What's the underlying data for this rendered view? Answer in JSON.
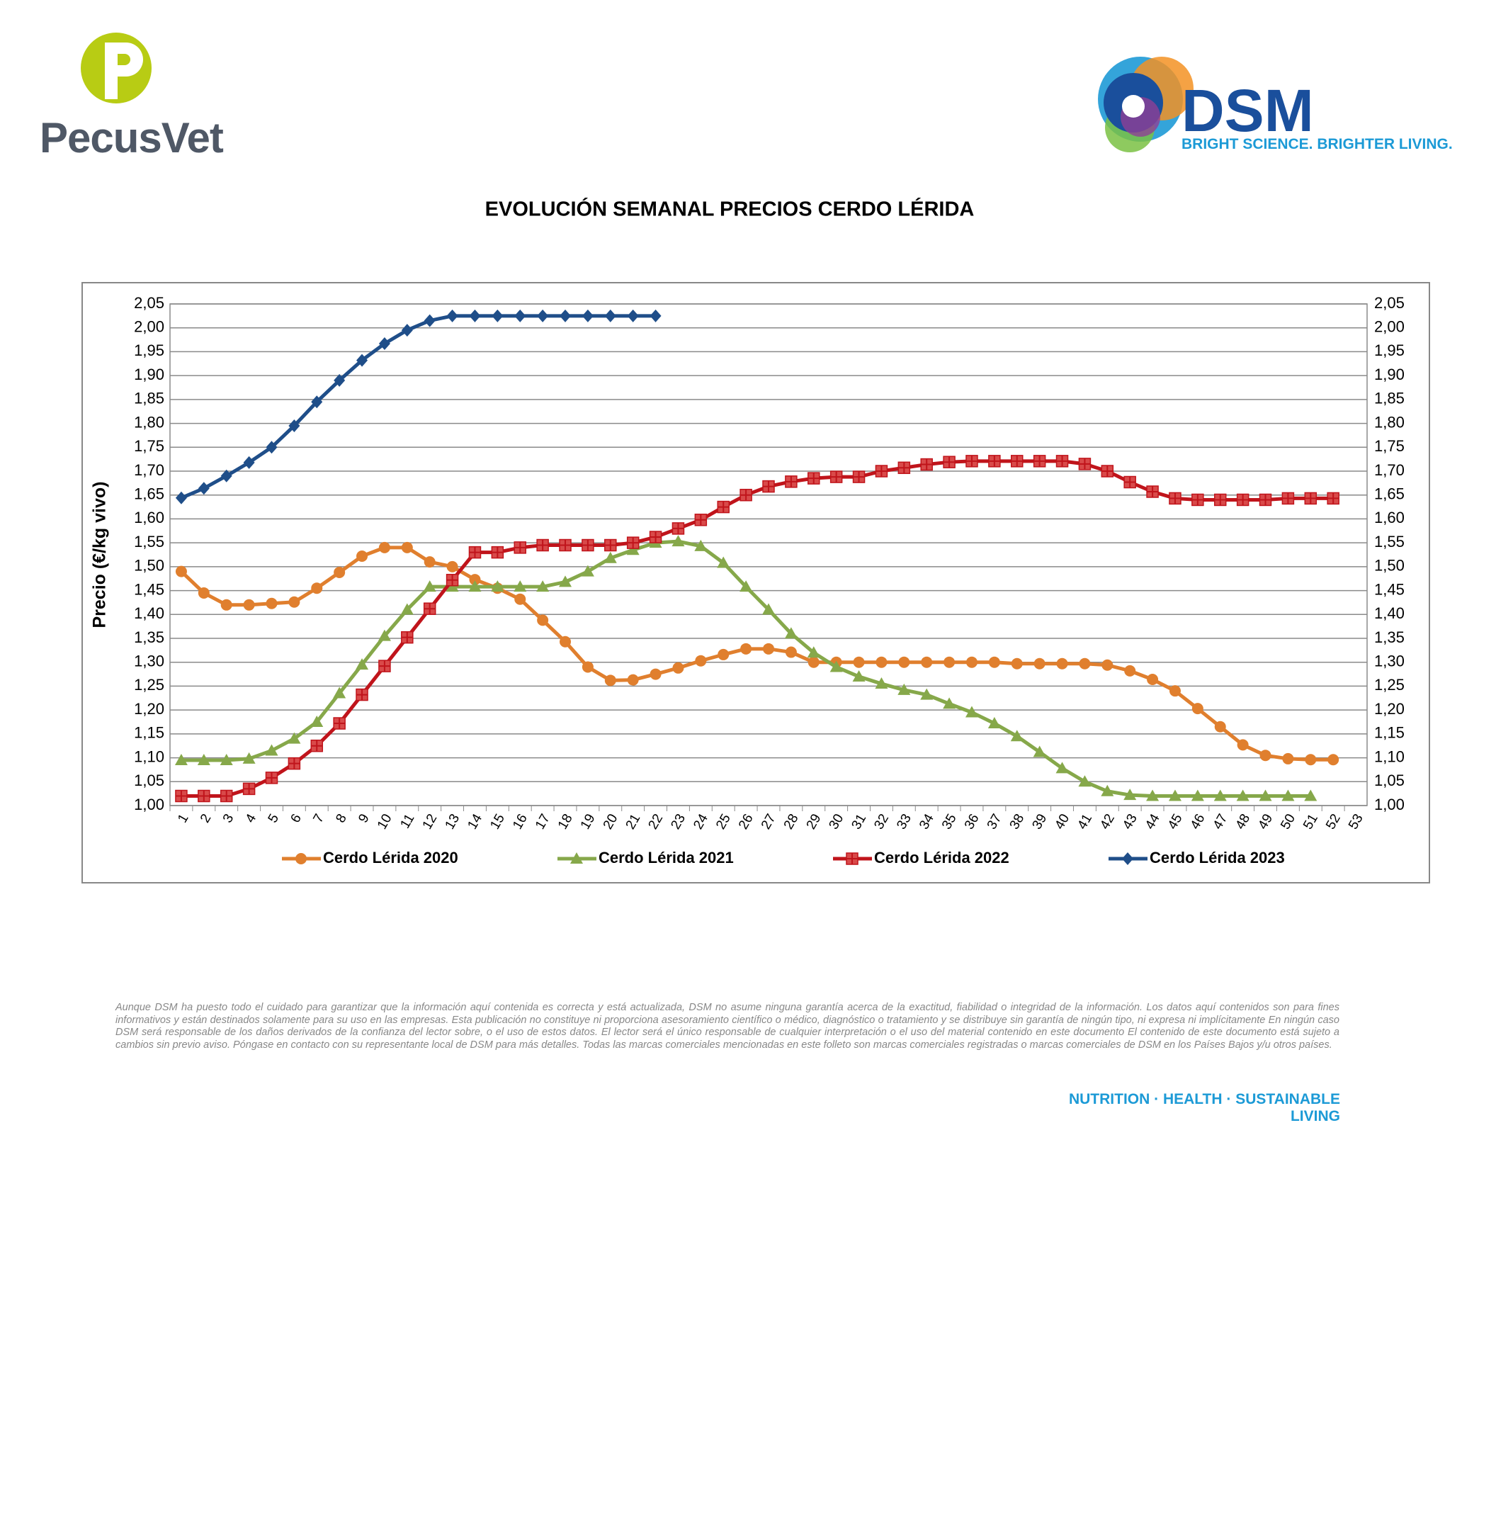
{
  "header": {
    "left_logo": "PecusVet",
    "right_logo": "DSM",
    "right_tagline": "BRIGHT SCIENCE. BRIGHTER LIVING."
  },
  "chart_data": {
    "type": "line",
    "title": "EVOLUCIÓN SEMANAL PRECIOS CERDO LÉRIDA",
    "y_label": "Precio (€/kg vivo)",
    "categories": [
      "1",
      "2",
      "3",
      "4",
      "5",
      "6",
      "7",
      "8",
      "9",
      "10",
      "11",
      "12",
      "13",
      "14",
      "15",
      "16",
      "17",
      "18",
      "19",
      "20",
      "21",
      "22",
      "23",
      "24",
      "25",
      "26",
      "27",
      "28",
      "29",
      "30",
      "31",
      "32",
      "33",
      "34",
      "35",
      "36",
      "37",
      "38",
      "39",
      "40",
      "41",
      "42",
      "43",
      "44",
      "45",
      "46",
      "47",
      "48",
      "49",
      "50",
      "51",
      "52",
      "53"
    ],
    "ylim": [
      1.0,
      2.05
    ],
    "yticks": [
      {
        "value": 1.0,
        "label": "1,00"
      },
      {
        "value": 1.05,
        "label": "1,05"
      },
      {
        "value": 1.1,
        "label": "1,10"
      },
      {
        "value": 1.15,
        "label": "1,15"
      },
      {
        "value": 1.2,
        "label": "1,20"
      },
      {
        "value": 1.25,
        "label": "1,25"
      },
      {
        "value": 1.3,
        "label": "1,30"
      },
      {
        "value": 1.35,
        "label": "1,35"
      },
      {
        "value": 1.4,
        "label": "1,40"
      },
      {
        "value": 1.45,
        "label": "1,45"
      },
      {
        "value": 1.5,
        "label": "1,50"
      },
      {
        "value": 1.55,
        "label": "1,55"
      },
      {
        "value": 1.6,
        "label": "1,60"
      },
      {
        "value": 1.65,
        "label": "1,65"
      },
      {
        "value": 1.7,
        "label": "1,70"
      },
      {
        "value": 1.75,
        "label": "1,75"
      },
      {
        "value": 1.8,
        "label": "1,80"
      },
      {
        "value": 1.85,
        "label": "1,85"
      },
      {
        "value": 1.9,
        "label": "1,90"
      },
      {
        "value": 1.95,
        "label": "1,95"
      },
      {
        "value": 2.0,
        "label": "2,00"
      },
      {
        "value": 2.05,
        "label": "2,05"
      }
    ],
    "grid": true,
    "legend": "bottom",
    "series": [
      {
        "name": "Cerdo Lérida 2020",
        "color": "#e07f2e",
        "marker": "circle",
        "values": [
          1.49,
          1.445,
          1.42,
          1.42,
          1.423,
          1.426,
          1.455,
          1.488,
          1.522,
          1.54,
          1.54,
          1.51,
          1.5,
          1.473,
          1.455,
          1.432,
          1.388,
          1.343,
          1.29,
          1.262,
          1.263,
          1.275,
          1.288,
          1.303,
          1.316,
          1.328,
          1.328,
          1.321,
          1.3,
          1.3,
          1.3,
          1.3,
          1.3,
          1.3,
          1.3,
          1.3,
          1.3,
          1.297,
          1.297,
          1.297,
          1.297,
          1.294,
          1.282,
          1.264,
          1.24,
          1.203,
          1.165,
          1.127,
          1.105,
          1.098,
          1.096,
          1.096,
          null
        ]
      },
      {
        "name": "Cerdo Lérida 2021",
        "color": "#86a84a",
        "marker": "triangle",
        "values": [
          1.095,
          1.095,
          1.095,
          1.098,
          1.115,
          1.14,
          1.175,
          1.235,
          1.295,
          1.355,
          1.41,
          1.458,
          1.458,
          1.458,
          1.458,
          1.458,
          1.458,
          1.468,
          1.49,
          1.518,
          1.535,
          1.55,
          1.553,
          1.543,
          1.508,
          1.458,
          1.41,
          1.36,
          1.32,
          1.29,
          1.27,
          1.255,
          1.242,
          1.232,
          1.213,
          1.195,
          1.172,
          1.145,
          1.112,
          1.078,
          1.05,
          1.03,
          1.022,
          1.02,
          1.02,
          1.02,
          1.02,
          1.02,
          1.02,
          1.02,
          1.02,
          null,
          null
        ]
      },
      {
        "name": "Cerdo Lérida 2022",
        "color": "#c0141b",
        "marker": "square-plus",
        "values": [
          1.02,
          1.02,
          1.02,
          1.035,
          1.058,
          1.088,
          1.125,
          1.172,
          1.232,
          1.292,
          1.352,
          1.412,
          1.472,
          1.53,
          1.53,
          1.54,
          1.545,
          1.545,
          1.545,
          1.545,
          1.55,
          1.562,
          1.58,
          1.598,
          1.625,
          1.65,
          1.668,
          1.678,
          1.685,
          1.688,
          1.688,
          1.7,
          1.707,
          1.714,
          1.719,
          1.721,
          1.721,
          1.721,
          1.721,
          1.721,
          1.715,
          1.7,
          1.677,
          1.657,
          1.643,
          1.64,
          1.64,
          1.64,
          1.64,
          1.643,
          1.643,
          1.643,
          null
        ]
      },
      {
        "name": "Cerdo Lérida 2023",
        "color": "#1f4e89",
        "marker": "diamond",
        "values": [
          1.644,
          1.664,
          1.69,
          1.718,
          1.75,
          1.795,
          1.845,
          1.89,
          1.932,
          1.967,
          1.995,
          2.015,
          2.025,
          2.025,
          2.025,
          2.025,
          2.025,
          2.025,
          2.025,
          2.025,
          2.025,
          2.025,
          null,
          null,
          null,
          null,
          null,
          null,
          null,
          null,
          null,
          null,
          null,
          null,
          null,
          null,
          null,
          null,
          null,
          null,
          null,
          null,
          null,
          null,
          null,
          null,
          null,
          null,
          null,
          null,
          null,
          null,
          null
        ]
      }
    ]
  },
  "footer": {
    "disclaimer": "Aunque DSM ha puesto todo el cuidado para garantizar que la información aquí contenida es correcta y está actualizada, DSM no asume ninguna garantía acerca de la exactitud, fiabilidad o integridad de la información. Los datos aquí contenidos son para fines informativos y están destinados solamente para su uso en las empresas. Esta publicación no constituye ni proporciona asesoramiento científico o médico, diagnóstico o tratamiento y se distribuye sin garantía de ningún tipo, ni expresa ni implícitamente En ningún caso DSM será responsable de los daños derivados de la confianza del lector sobre, o el uso de estos datos. El lector será el único responsable de cualquier interpretación o el uso del material contenido en este documento El contenido de este documento está sujeto a cambios sin previo aviso. Póngase en contacto con su representante local de DSM para más detalles. Todas las marcas comerciales mencionadas en este folleto son marcas comerciales registradas o marcas comerciales de DSM en los Países Bajos y/u otros países.",
    "slogan": "NUTRITION · HEALTH · SUSTAINABLE LIVING"
  }
}
